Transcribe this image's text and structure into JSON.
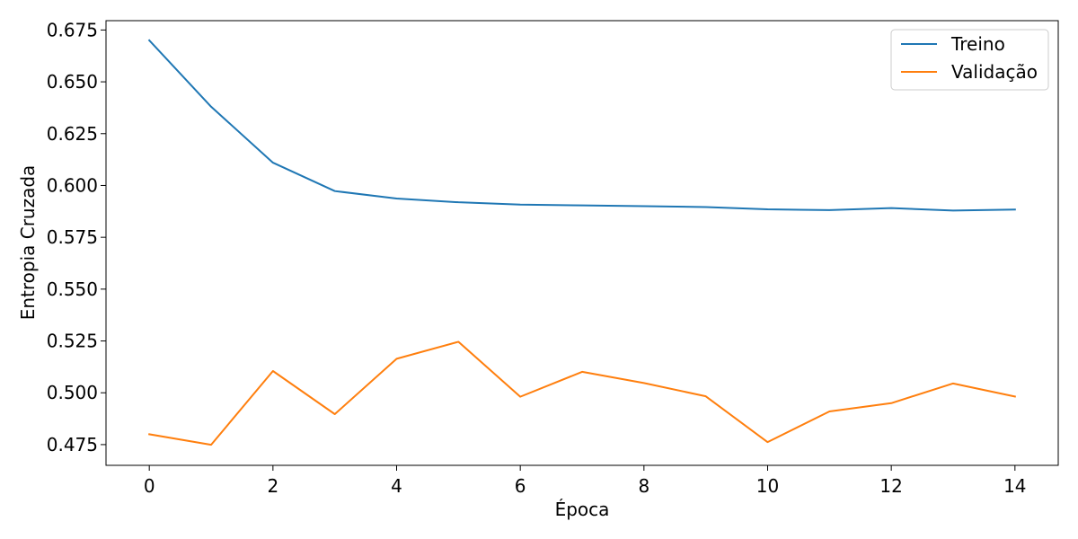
{
  "chart_data": {
    "type": "line",
    "x": [
      0,
      1,
      2,
      3,
      4,
      5,
      6,
      7,
      8,
      9,
      10,
      11,
      12,
      13,
      14
    ],
    "series": [
      {
        "name": "Treino",
        "color": "#1f77b4",
        "values": [
          0.67,
          0.638,
          0.611,
          0.5973,
          0.5937,
          0.5919,
          0.5908,
          0.5904,
          0.59,
          0.5896,
          0.5885,
          0.5881,
          0.5891,
          0.5879,
          0.5884
        ]
      },
      {
        "name": "Validação",
        "color": "#ff7f0e",
        "values": [
          0.48,
          0.4749,
          0.5105,
          0.4897,
          0.5164,
          0.5246,
          0.4981,
          0.5101,
          0.5047,
          0.4983,
          0.4762,
          0.491,
          0.495,
          0.5045,
          0.4982
        ]
      }
    ],
    "xlabel": "Época",
    "ylabel": "Entropia Cruzada",
    "xlim": [
      -0.7,
      14.7
    ],
    "ylim": [
      0.465,
      0.6795
    ],
    "xticks": [
      0,
      2,
      4,
      6,
      8,
      10,
      12,
      14
    ],
    "yticks": [
      0.475,
      0.5,
      0.525,
      0.55,
      0.575,
      0.6,
      0.625,
      0.65,
      0.675
    ],
    "ytick_labels": [
      "0.475",
      "0.500",
      "0.525",
      "0.550",
      "0.575",
      "0.600",
      "0.625",
      "0.650",
      "0.675"
    ],
    "grid": false,
    "legend_position": "top-right"
  }
}
